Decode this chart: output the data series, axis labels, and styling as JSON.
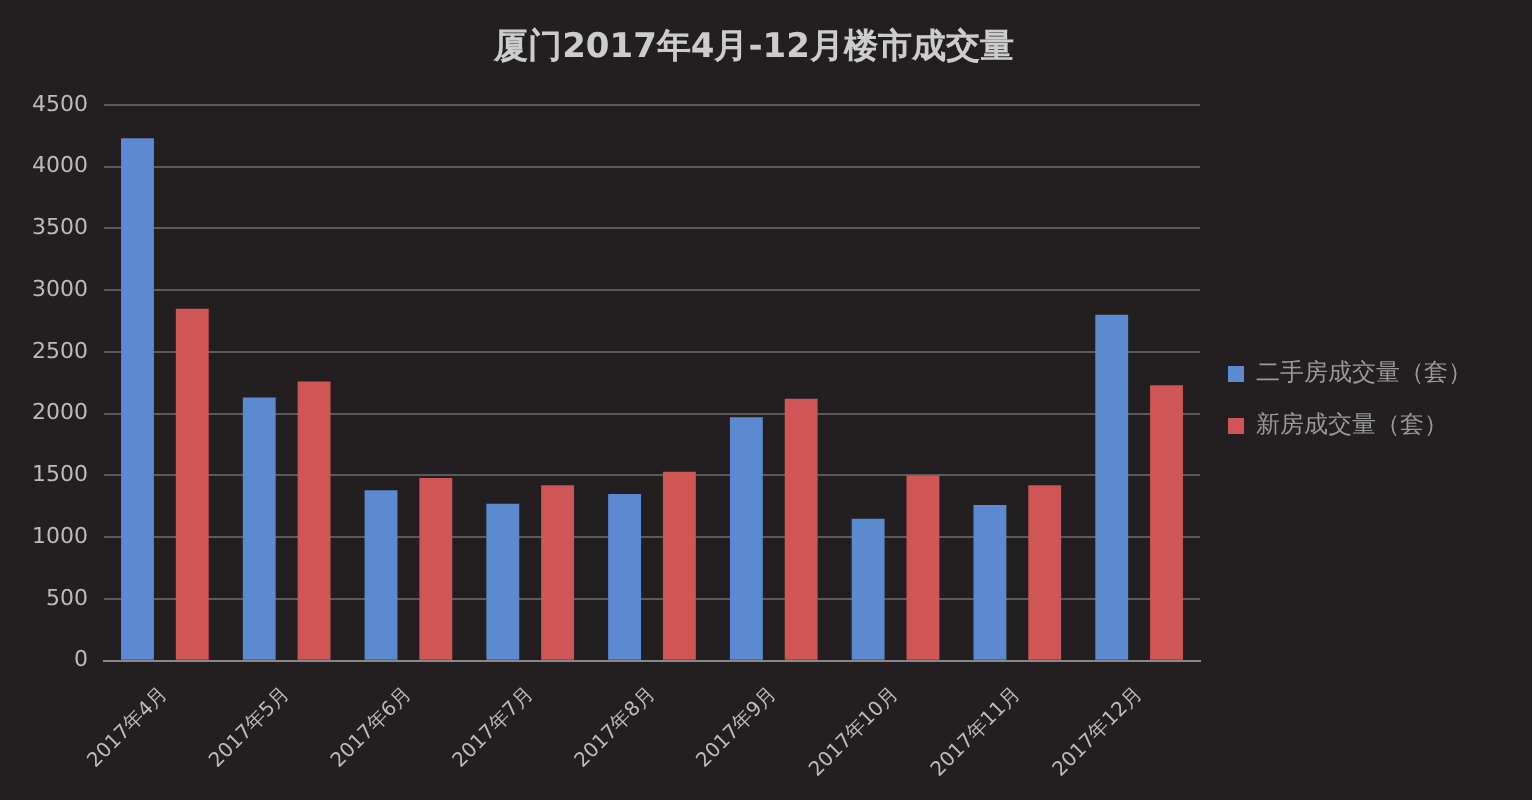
{
  "chart_data": {
    "type": "bar",
    "title": "厦门2017年4月-12月楼市成交量",
    "categories": [
      "2017年4月",
      "2017年5月",
      "2017年6月",
      "2017年7月",
      "2017年8月",
      "2017年9月",
      "2017年10月",
      "2017年11月",
      "2017年12月"
    ],
    "series": [
      {
        "name": "二手房成交量（套）",
        "color": "#5b8ad0",
        "values": [
          4230,
          2130,
          1380,
          1270,
          1350,
          1970,
          1150,
          1260,
          2800
        ]
      },
      {
        "name": "新房成交量（套）",
        "color": "#d05555",
        "values": [
          2850,
          2260,
          1480,
          1420,
          1530,
          2120,
          1500,
          1420,
          2230
        ]
      }
    ],
    "ylim": [
      0,
      4500
    ],
    "yticks": [
      0,
      500,
      1000,
      1500,
      2000,
      2500,
      3000,
      3500,
      4000,
      4500
    ],
    "grid": "y",
    "legend": "right"
  }
}
